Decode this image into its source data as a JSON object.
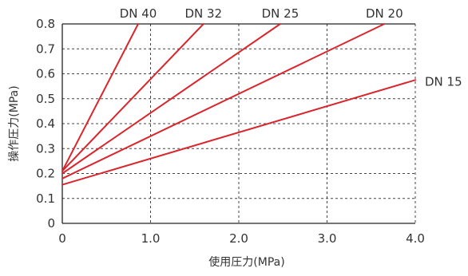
{
  "chart_data": {
    "type": "line",
    "xlabel": "使用圧力(MPa)",
    "ylabel": "操作圧力(MPa)",
    "xlim": [
      0,
      4.0
    ],
    "ylim": [
      0,
      0.8
    ],
    "x_ticks": [
      0,
      1.0,
      2.0,
      3.0,
      4.0
    ],
    "x_tick_labels": [
      "0",
      "1.0",
      "2.0",
      "3.0",
      "4.0"
    ],
    "y_ticks": [
      0,
      0.1,
      0.2,
      0.3,
      0.4,
      0.5,
      0.6,
      0.7,
      0.8
    ],
    "y_tick_labels": [
      "0",
      "0.1",
      "0.2",
      "0.3",
      "0.4",
      "0.5",
      "0.6",
      "0.7",
      "0.8"
    ],
    "grid": "dashed",
    "line_color": "#d9262c",
    "series": [
      {
        "name": "DN 40",
        "x": [
          0,
          0.86
        ],
        "y": [
          0.21,
          0.8
        ]
      },
      {
        "name": "DN 32",
        "x": [
          0,
          1.6
        ],
        "y": [
          0.21,
          0.8
        ]
      },
      {
        "name": "DN 25",
        "x": [
          0,
          2.47
        ],
        "y": [
          0.2,
          0.8
        ]
      },
      {
        "name": "DN 20",
        "x": [
          0,
          3.65
        ],
        "y": [
          0.18,
          0.8
        ]
      },
      {
        "name": "DN 15",
        "x": [
          0,
          4.0
        ],
        "y": [
          0.155,
          0.575
        ]
      }
    ]
  }
}
